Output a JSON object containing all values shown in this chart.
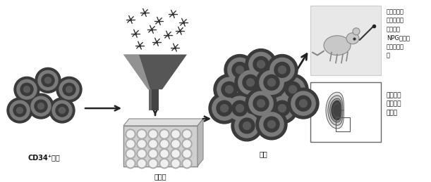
{
  "bg_color": "#ffffff",
  "labels": {
    "cd34": "CD34⁺细胞",
    "medium": "培北基",
    "expansion": "扩增",
    "inject_text": "将扩增后细\n胞通过尾静\n脉注射到\nNPG重度免\n疫缺陷鼠体\n内",
    "flow_text": "流式分析\n造血干组\n细胞群"
  },
  "colors": {
    "cell_dark": "#3a3a3a",
    "cell_ring": "#7a7a7a",
    "cell_outer_ring": "#555555",
    "arrow_color": "#222222",
    "funnel_dark": "#444444",
    "funnel_mid": "#888888",
    "funnel_light": "#bbbbbb",
    "molecule_color": "#333333",
    "plate_bg": "#d0d0d0",
    "plate_edge": "#888888",
    "well_fill": "#f0f0f0",
    "well_edge": "#999999",
    "mouse_box_bg": "#e8e8e8",
    "flow_box_bg": "#ffffff",
    "flow_box_edge": "#666666",
    "flow_fill": "#555555",
    "flow_line": "#333333",
    "text_color": "#111111"
  },
  "figsize": [
    6.11,
    2.59
  ],
  "dpi": 100
}
